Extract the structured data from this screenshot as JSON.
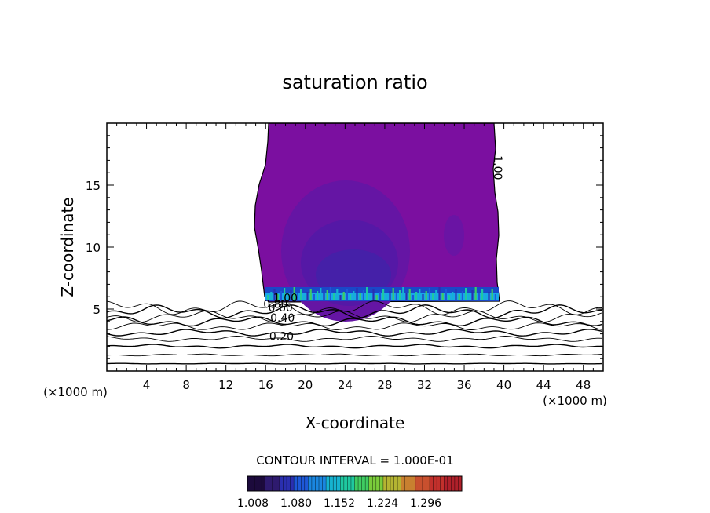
{
  "chart_data": {
    "type": "heatmap",
    "title": "saturation ratio",
    "xlabel": "X-coordinate",
    "ylabel": "Z-coordinate",
    "x_unit_left": "(×1000 m)",
    "x_unit_right": "(×1000 m)",
    "xlim": [
      0,
      50
    ],
    "ylim": [
      0,
      20
    ],
    "xticks": [
      4,
      8,
      12,
      16,
      20,
      24,
      28,
      32,
      36,
      40,
      44,
      48
    ],
    "yticks": [
      5,
      10,
      15
    ],
    "contour_interval_text": "CONTOUR INTERVAL = 1.000E-01",
    "contour_labels": [
      {
        "text": "1.00",
        "x": 39.0,
        "z": 16.4
      },
      {
        "text": "1.00",
        "x": 18.0,
        "z": 5.6
      },
      {
        "text": "0.60",
        "x": 17.5,
        "z": 4.8
      },
      {
        "text": "0.80",
        "x": 17.0,
        "z": 5.1
      },
      {
        "text": "0.40",
        "x": 17.7,
        "z": 4.0
      },
      {
        "text": "0.20",
        "x": 17.6,
        "z": 2.5
      }
    ],
    "subsaturated_contours_z": [
      0.6,
      1.3,
      2.0,
      2.6,
      3.1,
      3.6,
      4.0,
      4.4,
      4.8,
      5.1
    ],
    "cloud_region": {
      "x_range": [
        15.8,
        39.2
      ],
      "z_range": [
        5.5,
        20
      ],
      "value": 1.008
    },
    "colorbar": {
      "ticks": [
        "1.008",
        "1.080",
        "1.152",
        "1.224",
        "1.296"
      ],
      "colors": [
        "#1c0a3c",
        "#2e1a6e",
        "#2a2fb0",
        "#1e58d8",
        "#1a86e0",
        "#16b2d0",
        "#1fc8a0",
        "#3fcc62",
        "#7acc3a",
        "#b4b432",
        "#c88030",
        "#c8502e",
        "#c2302c",
        "#b0202a"
      ]
    }
  }
}
